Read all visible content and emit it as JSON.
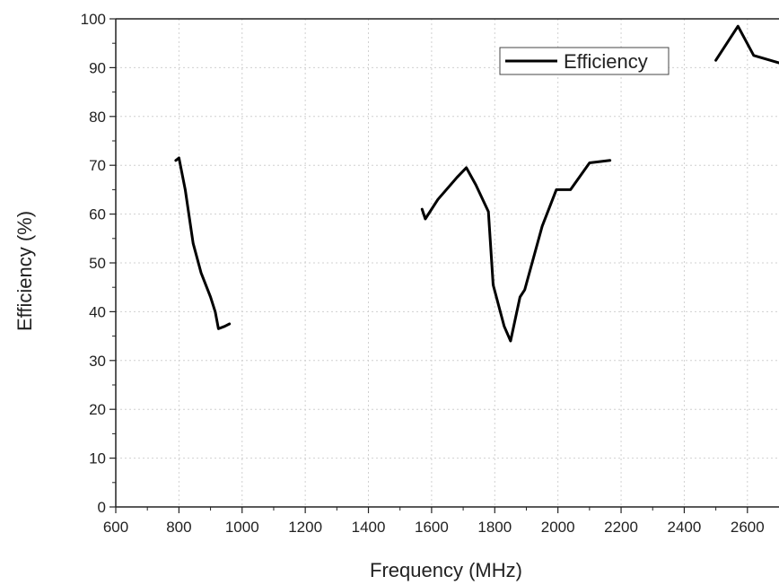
{
  "chart_data": {
    "type": "line",
    "title": "",
    "xlabel": "Frequency (MHz)",
    "ylabel": "Efficiency (%)",
    "xlim": [
      600,
      2700
    ],
    "ylim": [
      0,
      100
    ],
    "x_ticks": [
      600,
      800,
      1000,
      1200,
      1400,
      1600,
      1800,
      2000,
      2200,
      2400,
      2600
    ],
    "y_ticks": [
      0,
      10,
      20,
      30,
      40,
      50,
      60,
      70,
      80,
      90,
      100
    ],
    "grid": true,
    "legend_position": "top-right",
    "line_color": "#000000",
    "series": [
      {
        "name": "Efficiency",
        "segments": [
          [
            [
              790,
              71
            ],
            [
              800,
              71.5
            ],
            [
              820,
              65
            ],
            [
              845,
              54
            ],
            [
              870,
              48
            ],
            [
              900,
              43
            ],
            [
              915,
              40
            ],
            [
              925,
              36.5
            ],
            [
              945,
              37
            ],
            [
              960,
              37.5
            ]
          ],
          [
            [
              1570,
              61
            ],
            [
              1580,
              59
            ],
            [
              1620,
              63
            ],
            [
              1680,
              67.5
            ],
            [
              1710,
              69.5
            ],
            [
              1740,
              66
            ],
            [
              1780,
              60.5
            ],
            [
              1795,
              45.5
            ],
            [
              1830,
              37
            ],
            [
              1850,
              34
            ],
            [
              1880,
              43
            ],
            [
              1895,
              44.5
            ],
            [
              1950,
              57.5
            ],
            [
              1995,
              65
            ],
            [
              2040,
              65
            ],
            [
              2100,
              70.5
            ],
            [
              2165,
              71
            ]
          ],
          [
            [
              2500,
              91.5
            ],
            [
              2570,
              98.5
            ],
            [
              2620,
              92.5
            ],
            [
              2700,
              91
            ]
          ]
        ]
      }
    ]
  }
}
